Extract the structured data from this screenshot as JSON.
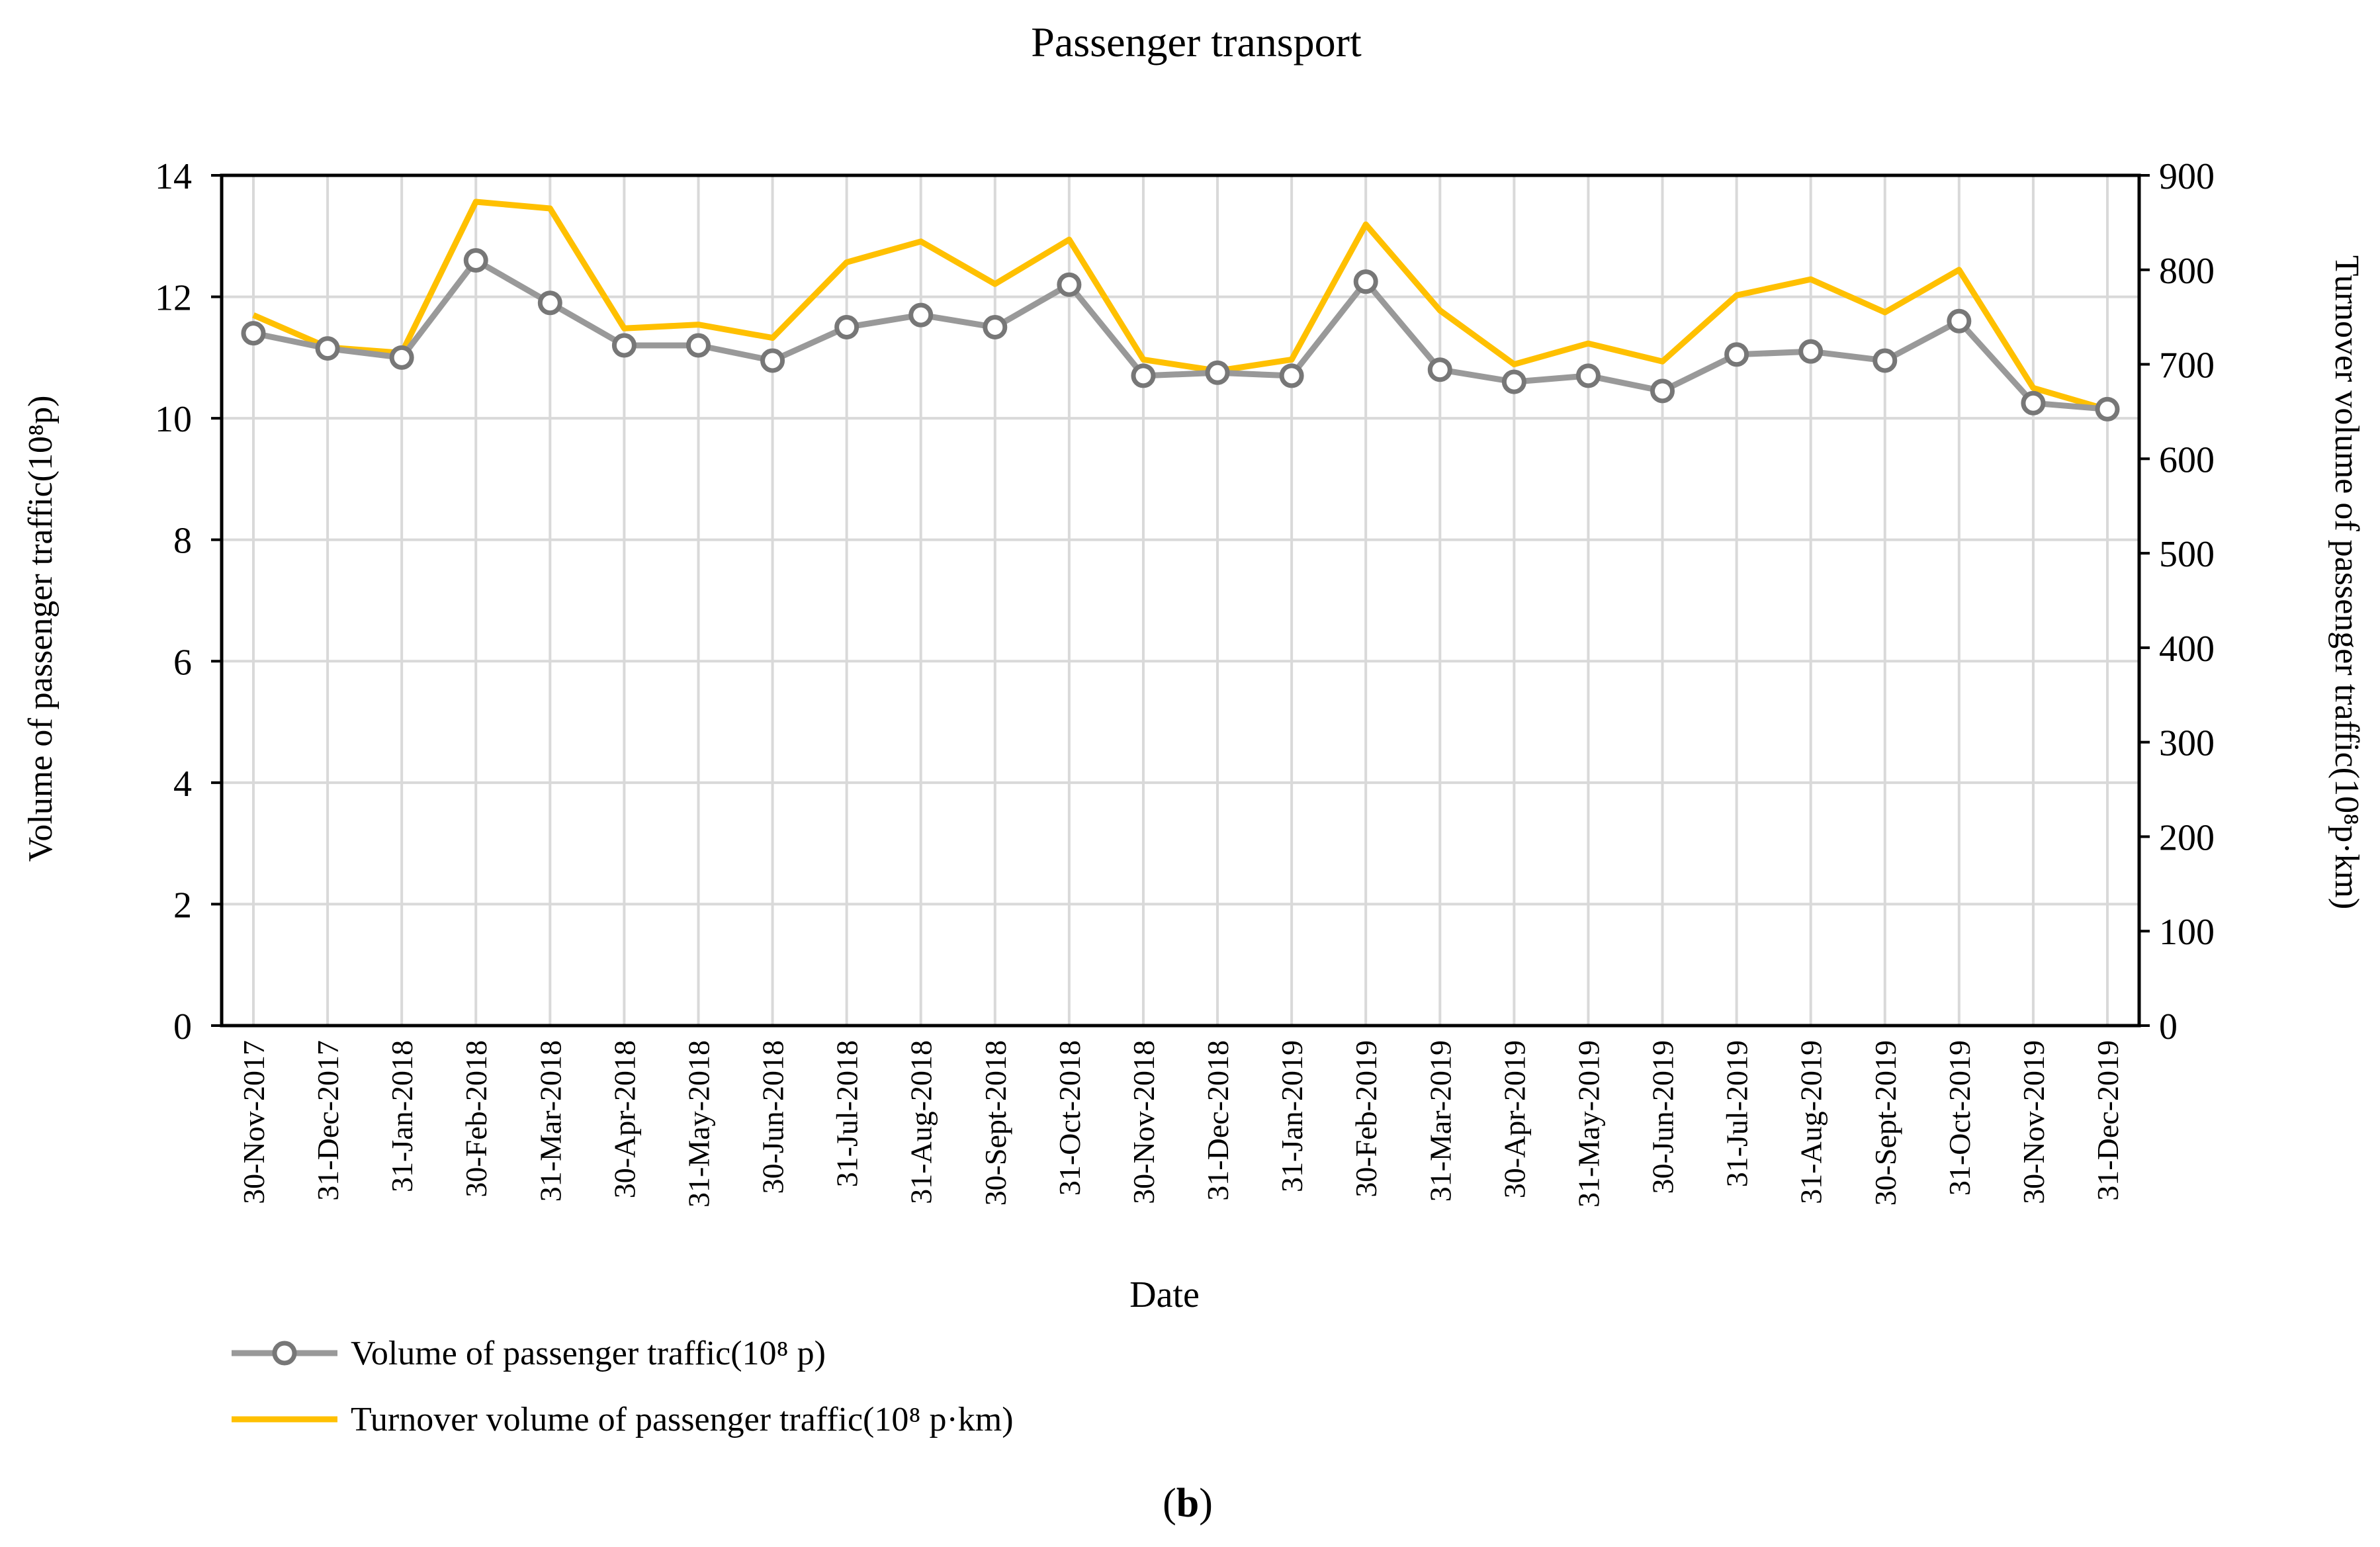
{
  "chart_data": {
    "type": "line",
    "title": "Passenger transport",
    "xlabel": "Date",
    "ylabel": "Volume of passenger traffic(10⁸p)",
    "y2label": "Turnover volume of passenger traffic(10⁸p·km)",
    "ylim": [
      0,
      14
    ],
    "y2lim": [
      0,
      900
    ],
    "yticks": [
      "0",
      "2",
      "4",
      "6",
      "8",
      "10",
      "12",
      "14"
    ],
    "y2ticks": [
      "0",
      "100",
      "200",
      "300",
      "400",
      "500",
      "600",
      "700",
      "800",
      "900"
    ],
    "categories": [
      "30-Nov-2017",
      "31-Dec-2017",
      "31-Jan-2018",
      "30-Feb-2018",
      "31-Mar-2018",
      "30-Apr-2018",
      "31-May-2018",
      "30-Jun-2018",
      "31-Jul-2018",
      "31-Aug-2018",
      "30-Sept-2018",
      "31-Oct-2018",
      "30-Nov-2018",
      "31-Dec-2018",
      "31-Jan-2019",
      "30-Feb-2019",
      "31-Mar-2019",
      "30-Apr-2019",
      "31-May-2019",
      "30-Jun-2019",
      "31-Jul-2019",
      "31-Aug-2019",
      "30-Sept-2019",
      "31-Oct-2019",
      "30-Nov-2019",
      "31-Dec-2019"
    ],
    "series": [
      {
        "name": "Volume of passenger traffic(10⁸ p)",
        "axis": "left",
        "color": "#999999",
        "marker": "circle",
        "values": [
          11.4,
          11.15,
          11.0,
          12.6,
          11.9,
          11.2,
          11.2,
          10.95,
          11.5,
          11.7,
          11.5,
          12.2,
          10.7,
          10.75,
          10.7,
          12.25,
          10.8,
          10.6,
          10.7,
          10.45,
          11.05,
          11.1,
          10.95,
          11.6,
          10.25,
          10.15
        ]
      },
      {
        "name": "Turnover volume of passenger traffic(10⁸ p·km)",
        "axis": "right",
        "color": "#FFC000",
        "marker": "none",
        "values": [
          752,
          718,
          712,
          872,
          865,
          738,
          742,
          728,
          808,
          830,
          785,
          832,
          705,
          693,
          705,
          848,
          757,
          700,
          722,
          703,
          773,
          790,
          755,
          800,
          675,
          652
        ]
      }
    ],
    "legend_position": "bottom-left",
    "grid": true
  },
  "caption": "b"
}
